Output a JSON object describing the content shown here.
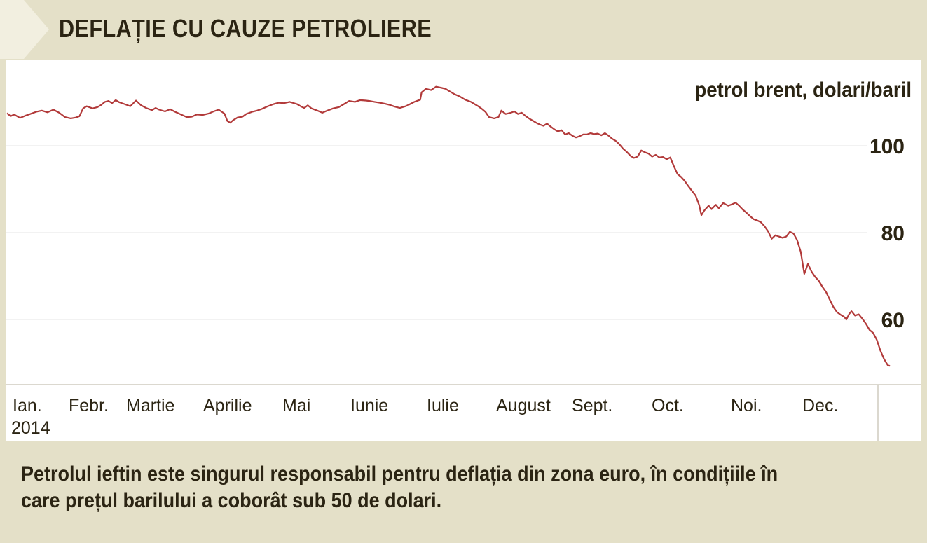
{
  "header": {
    "title": "DEFLAȚIE CU CAUZE PETROLIERE"
  },
  "chart_data": {
    "type": "line",
    "title": "DEFLAȚIE CU CAUZE PETROLIERE",
    "ylabel": "petrol brent, dolari/baril",
    "xlabel": "",
    "ylim": [
      46,
      117
    ],
    "y_ticks": [
      100,
      80,
      60
    ],
    "x_ticks": [
      {
        "label": "Ian.",
        "sublabel": "2014",
        "month": 0
      },
      {
        "label": "Febr.",
        "month": 1
      },
      {
        "label": "Martie",
        "month": 2
      },
      {
        "label": "Aprilie",
        "month": 3
      },
      {
        "label": "Mai",
        "month": 4
      },
      {
        "label": "Iunie",
        "month": 5
      },
      {
        "label": "Iulie",
        "month": 6
      },
      {
        "label": "August",
        "month": 7
      },
      {
        "label": "Sept.",
        "month": 8
      },
      {
        "label": "Oct.",
        "month": 9
      },
      {
        "label": "Noi.",
        "month": 10
      },
      {
        "label": "Dec.",
        "month": 11
      }
    ],
    "grid": true,
    "line_color": "#b23a3a",
    "series": [
      {
        "points": [
          [
            0.0,
            107.5
          ],
          [
            0.05,
            106.8
          ],
          [
            0.1,
            107.2
          ],
          [
            0.18,
            106.4
          ],
          [
            0.25,
            106.9
          ],
          [
            0.32,
            107.3
          ],
          [
            0.4,
            107.8
          ],
          [
            0.48,
            108.1
          ],
          [
            0.56,
            107.7
          ],
          [
            0.64,
            108.3
          ],
          [
            0.72,
            107.6
          ],
          [
            0.8,
            106.6
          ],
          [
            0.88,
            106.3
          ],
          [
            0.95,
            106.5
          ],
          [
            1.0,
            106.8
          ],
          [
            1.05,
            108.6
          ],
          [
            1.1,
            109.1
          ],
          [
            1.18,
            108.6
          ],
          [
            1.25,
            108.9
          ],
          [
            1.3,
            109.4
          ],
          [
            1.35,
            110.1
          ],
          [
            1.4,
            110.3
          ],
          [
            1.45,
            109.8
          ],
          [
            1.5,
            110.5
          ],
          [
            1.55,
            110.0
          ],
          [
            1.62,
            109.6
          ],
          [
            1.7,
            109.1
          ],
          [
            1.78,
            110.4
          ],
          [
            1.85,
            109.3
          ],
          [
            1.92,
            108.7
          ],
          [
            2.0,
            108.2
          ],
          [
            2.05,
            108.7
          ],
          [
            2.1,
            108.3
          ],
          [
            2.18,
            107.9
          ],
          [
            2.25,
            108.4
          ],
          [
            2.32,
            107.8
          ],
          [
            2.4,
            107.2
          ],
          [
            2.48,
            106.6
          ],
          [
            2.55,
            106.7
          ],
          [
            2.62,
            107.2
          ],
          [
            2.7,
            107.1
          ],
          [
            2.78,
            107.4
          ],
          [
            2.85,
            107.9
          ],
          [
            2.92,
            108.3
          ],
          [
            3.0,
            107.4
          ],
          [
            3.04,
            105.7
          ],
          [
            3.08,
            105.3
          ],
          [
            3.12,
            105.9
          ],
          [
            3.18,
            106.5
          ],
          [
            3.25,
            106.7
          ],
          [
            3.3,
            107.3
          ],
          [
            3.38,
            107.8
          ],
          [
            3.45,
            108.1
          ],
          [
            3.52,
            108.5
          ],
          [
            3.6,
            109.1
          ],
          [
            3.68,
            109.6
          ],
          [
            3.75,
            109.9
          ],
          [
            3.82,
            109.8
          ],
          [
            3.9,
            110.1
          ],
          [
            4.0,
            109.6
          ],
          [
            4.05,
            109.1
          ],
          [
            4.1,
            108.7
          ],
          [
            4.15,
            109.3
          ],
          [
            4.2,
            108.6
          ],
          [
            4.28,
            108.1
          ],
          [
            4.35,
            107.6
          ],
          [
            4.42,
            108.1
          ],
          [
            4.5,
            108.6
          ],
          [
            4.58,
            108.9
          ],
          [
            4.65,
            109.6
          ],
          [
            4.72,
            110.3
          ],
          [
            4.8,
            110.1
          ],
          [
            4.87,
            110.5
          ],
          [
            4.95,
            110.4
          ],
          [
            5.0,
            110.3
          ],
          [
            5.07,
            110.1
          ],
          [
            5.14,
            109.9
          ],
          [
            5.21,
            109.7
          ],
          [
            5.28,
            109.4
          ],
          [
            5.35,
            109.0
          ],
          [
            5.42,
            108.7
          ],
          [
            5.5,
            109.1
          ],
          [
            5.55,
            109.5
          ],
          [
            5.62,
            110.1
          ],
          [
            5.7,
            110.6
          ],
          [
            5.72,
            112.3
          ],
          [
            5.78,
            113.1
          ],
          [
            5.85,
            112.8
          ],
          [
            5.92,
            113.6
          ],
          [
            6.0,
            113.3
          ],
          [
            6.05,
            113.1
          ],
          [
            6.1,
            112.6
          ],
          [
            6.18,
            111.8
          ],
          [
            6.25,
            111.3
          ],
          [
            6.32,
            110.6
          ],
          [
            6.4,
            110.1
          ],
          [
            6.45,
            109.6
          ],
          [
            6.5,
            109.1
          ],
          [
            6.55,
            108.5
          ],
          [
            6.6,
            107.8
          ],
          [
            6.65,
            106.6
          ],
          [
            6.72,
            106.3
          ],
          [
            6.78,
            106.6
          ],
          [
            6.82,
            108.1
          ],
          [
            6.88,
            107.3
          ],
          [
            6.95,
            107.6
          ],
          [
            7.0,
            107.9
          ],
          [
            7.05,
            107.3
          ],
          [
            7.1,
            107.6
          ],
          [
            7.15,
            106.9
          ],
          [
            7.2,
            106.3
          ],
          [
            7.25,
            105.8
          ],
          [
            7.3,
            105.3
          ],
          [
            7.35,
            104.9
          ],
          [
            7.4,
            104.6
          ],
          [
            7.45,
            105.1
          ],
          [
            7.5,
            104.4
          ],
          [
            7.55,
            103.8
          ],
          [
            7.6,
            103.3
          ],
          [
            7.65,
            103.6
          ],
          [
            7.7,
            102.6
          ],
          [
            7.75,
            102.9
          ],
          [
            7.8,
            102.3
          ],
          [
            7.85,
            101.9
          ],
          [
            7.9,
            102.2
          ],
          [
            7.95,
            102.6
          ],
          [
            8.0,
            102.6
          ],
          [
            8.05,
            102.9
          ],
          [
            8.1,
            102.7
          ],
          [
            8.15,
            102.8
          ],
          [
            8.2,
            102.4
          ],
          [
            8.25,
            102.9
          ],
          [
            8.3,
            102.3
          ],
          [
            8.35,
            101.6
          ],
          [
            8.4,
            101.1
          ],
          [
            8.45,
            100.3
          ],
          [
            8.5,
            99.3
          ],
          [
            8.55,
            98.6
          ],
          [
            8.6,
            97.7
          ],
          [
            8.65,
            97.2
          ],
          [
            8.7,
            97.5
          ],
          [
            8.75,
            98.9
          ],
          [
            8.8,
            98.5
          ],
          [
            8.85,
            98.2
          ],
          [
            8.9,
            97.5
          ],
          [
            8.95,
            97.9
          ],
          [
            9.0,
            97.3
          ],
          [
            9.05,
            97.4
          ],
          [
            9.1,
            96.9
          ],
          [
            9.15,
            97.3
          ],
          [
            9.2,
            95.3
          ],
          [
            9.25,
            93.5
          ],
          [
            9.3,
            92.8
          ],
          [
            9.35,
            91.9
          ],
          [
            9.4,
            90.7
          ],
          [
            9.45,
            89.6
          ],
          [
            9.5,
            88.5
          ],
          [
            9.55,
            86.3
          ],
          [
            9.58,
            84.0
          ],
          [
            9.62,
            85.1
          ],
          [
            9.68,
            86.2
          ],
          [
            9.72,
            85.4
          ],
          [
            9.78,
            86.4
          ],
          [
            9.82,
            85.6
          ],
          [
            9.88,
            86.8
          ],
          [
            9.95,
            86.2
          ],
          [
            10.0,
            86.5
          ],
          [
            10.05,
            86.9
          ],
          [
            10.1,
            86.2
          ],
          [
            10.15,
            85.3
          ],
          [
            10.2,
            84.6
          ],
          [
            10.25,
            83.8
          ],
          [
            10.3,
            83.1
          ],
          [
            10.35,
            82.8
          ],
          [
            10.4,
            82.4
          ],
          [
            10.45,
            81.5
          ],
          [
            10.5,
            80.3
          ],
          [
            10.55,
            78.6
          ],
          [
            10.6,
            79.4
          ],
          [
            10.65,
            79.1
          ],
          [
            10.7,
            78.8
          ],
          [
            10.75,
            79.1
          ],
          [
            10.8,
            80.2
          ],
          [
            10.85,
            79.8
          ],
          [
            10.9,
            78.3
          ],
          [
            10.95,
            75.6
          ],
          [
            11.0,
            70.5
          ],
          [
            11.05,
            72.8
          ],
          [
            11.1,
            71.0
          ],
          [
            11.15,
            69.8
          ],
          [
            11.2,
            68.9
          ],
          [
            11.25,
            67.5
          ],
          [
            11.3,
            66.3
          ],
          [
            11.35,
            64.6
          ],
          [
            11.4,
            62.9
          ],
          [
            11.45,
            61.7
          ],
          [
            11.5,
            61.1
          ],
          [
            11.55,
            60.6
          ],
          [
            11.58,
            60.0
          ],
          [
            11.62,
            61.3
          ],
          [
            11.65,
            61.9
          ],
          [
            11.7,
            60.9
          ],
          [
            11.75,
            61.2
          ],
          [
            11.8,
            60.2
          ],
          [
            11.85,
            59.0
          ],
          [
            11.9,
            57.6
          ],
          [
            11.95,
            56.9
          ],
          [
            12.0,
            55.3
          ],
          [
            12.05,
            52.8
          ],
          [
            12.1,
            50.9
          ],
          [
            12.15,
            49.5
          ],
          [
            12.18,
            49.3
          ]
        ]
      }
    ]
  },
  "caption": "Petrolul ieftin este singurul responsabil pentru deflația din zona euro, în condițiile în care prețul barilului a coborât sub 50 de dolari."
}
